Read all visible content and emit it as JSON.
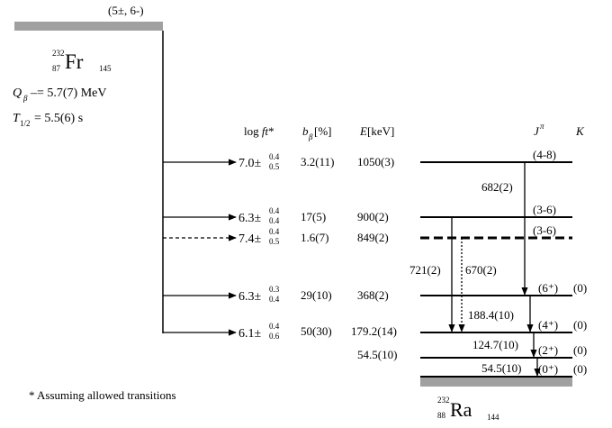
{
  "parent": {
    "spin_label": "(5±, 6-)",
    "mass": "232",
    "z": "87",
    "symbol": "Fr",
    "n": "145",
    "q_symbol": "Q",
    "q_sub": "β",
    "q_value": "–= 5.7(7) MeV",
    "t_symbol": "T",
    "t_sub": "1/2",
    "t_value": "= 5.5(6) s"
  },
  "daughter": {
    "mass": "232",
    "z": "88",
    "symbol": "Ra",
    "n": "144"
  },
  "headers": {
    "logft": "log ",
    "logft_italic": "ft",
    "logft_star": "*",
    "b_symbol": "b",
    "b_sub": "β",
    "b_unit": " [%]",
    "e_symbol": "E",
    "e_unit": " [keV]",
    "j_symbol": "J",
    "j_sup": "π",
    "k_symbol": "K"
  },
  "feeding": [
    {
      "logft": "7.0±",
      "logft_up": "0.4",
      "logft_dn": "0.5",
      "branch": "3.2(11)",
      "energy": "1050(3)",
      "dashed": false
    },
    {
      "logft": "6.3±",
      "logft_up": "0.4",
      "logft_dn": "0.4",
      "branch": "17(5)",
      "energy": "900(2)",
      "dashed": false
    },
    {
      "logft": "7.4±",
      "logft_up": "0.4",
      "logft_dn": "0.5",
      "branch": "1.6(7)",
      "energy": "849(2)",
      "dashed": true
    },
    {
      "logft": "6.3±",
      "logft_up": "0.3",
      "logft_dn": "0.4",
      "branch": "29(10)",
      "energy": "368(2)",
      "dashed": false
    },
    {
      "logft": "6.1±",
      "logft_up": "0.4",
      "logft_dn": "0.6",
      "branch": "50(30)",
      "energy": "179.2(14)",
      "dashed": false
    }
  ],
  "extra_energy": "54.5(10)",
  "levels": [
    {
      "energy": "1050(3)",
      "jpi": "(4-8)",
      "k": ""
    },
    {
      "energy": "900(2)",
      "jpi": "(3-6)",
      "k": ""
    },
    {
      "energy": "849(2)",
      "jpi": "(3-6)",
      "k": ""
    },
    {
      "energy": "368(2)",
      "jpi": "(6⁺)",
      "k": "(0)"
    },
    {
      "energy": "179.2(14)",
      "jpi": "(4⁺)",
      "k": "(0)"
    },
    {
      "energy": "54.5(10)",
      "jpi": "(2⁺)",
      "k": "(0)"
    },
    {
      "energy": "0",
      "jpi": "(0⁺)",
      "k": "(0)"
    }
  ],
  "gammas": [
    {
      "energy": "682(2)",
      "from": "1050(3)",
      "to": "368(2)",
      "dashed": false
    },
    {
      "energy": "721(2)",
      "from": "900(2)",
      "to": "179.2(14)",
      "dashed": false
    },
    {
      "energy": "670(2)",
      "from": "849(2)",
      "to": "179.2(14)",
      "dashed": true
    },
    {
      "energy": "188.4(10)",
      "from": "368(2)",
      "to": "179.2(14)",
      "dashed": false
    },
    {
      "energy": "124.7(10)",
      "from": "179.2(14)",
      "to": "54.5(10)",
      "dashed": false
    },
    {
      "energy": "54.5(10)",
      "from": "54.5(10)",
      "to": "0",
      "dashed": false
    }
  ],
  "footnote": "* Assuming allowed transitions",
  "colors": {
    "ground_bar": "#a0a0a0",
    "line": "#000000"
  }
}
